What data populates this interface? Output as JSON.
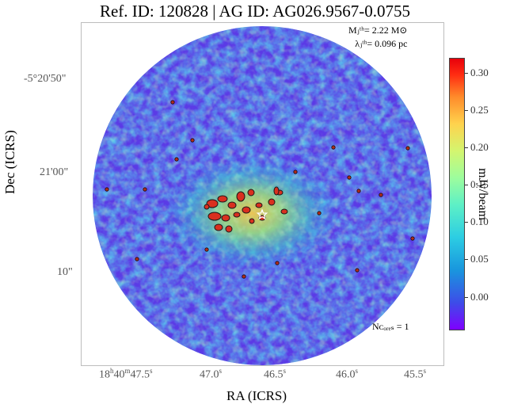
{
  "title": "Ref. ID: 120828 | AG ID: AG026.9567-0.0755",
  "annotations": {
    "mass_threshold": "Mⱼᵗʰ= 2.22 M⊙",
    "jeans_length": "λⱼᵗʰ= 0.096 pc",
    "ncores": "Nᴄₒᵣₑₛ = 1"
  },
  "colormap": "jet",
  "colors": {
    "frame": "#bdbdbd",
    "core": "#d9301f",
    "background": "#5a2ee0"
  },
  "chart_data": {
    "type": "heatmap",
    "title": "Ref. ID: 120828 | AG ID: AG026.9567-0.0755",
    "xlabel": "RA (ICRS)",
    "ylabel": "Dec (ICRS)",
    "x_ticks": [
      "18h40m47.5s",
      "47.0s",
      "46.5s",
      "46.0s",
      "45.5s"
    ],
    "y_ticks": [
      "-5°20'50\"",
      "21'00\"",
      "10\""
    ],
    "colorbar": {
      "label": "mJy/beam",
      "ticks": [
        0.0,
        0.05,
        0.1,
        0.15,
        0.2,
        0.25,
        0.3
      ],
      "range": [
        -0.045,
        0.32
      ]
    },
    "emission_peak_label": "central clump",
    "n_cores": 1
  },
  "labels": {
    "x_tick_labels": [
      {
        "main": "18",
        "sup": "h",
        "main2": "40",
        "sup2": "m",
        "main3": "47.5",
        "sup3": "s"
      },
      {
        "main": "47.0",
        "sup": "s"
      },
      {
        "main": "46.5",
        "sup": "s"
      },
      {
        "main": "46.0",
        "sup": "s"
      },
      {
        "main": "45.5",
        "sup": "s"
      }
    ],
    "y_tick_labels": [
      "-5°20'50\"",
      "21'00\"",
      "10\""
    ],
    "cbar_tick_labels": [
      "0.00",
      "0.05",
      "0.10",
      "0.15",
      "0.20",
      "0.25",
      "0.30"
    ]
  }
}
